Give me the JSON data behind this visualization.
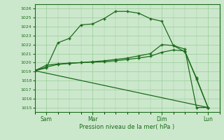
{
  "background_color": "#cce8cc",
  "grid_color": "#99cc99",
  "line_color": "#1a6b1a",
  "marker": "+",
  "xlabel": "Pression niveau de la mer( hPa )",
  "ylim_bottom": 1014.5,
  "ylim_top": 1026.5,
  "yticks": [
    1015,
    1016,
    1017,
    1018,
    1019,
    1020,
    1021,
    1022,
    1023,
    1024,
    1025,
    1026
  ],
  "xtick_labels": [
    "Sam",
    "Mar",
    "Dim",
    "Lun"
  ],
  "xtick_positions": [
    1,
    5,
    11,
    15
  ],
  "xlim": [
    0,
    16
  ],
  "series": [
    {
      "x": [
        0,
        1,
        2,
        3,
        4,
        5,
        6,
        7,
        8,
        9,
        10,
        11,
        12,
        13,
        14,
        15
      ],
      "y": [
        1019.1,
        1019.4,
        1022.2,
        1022.7,
        1024.2,
        1024.3,
        1024.9,
        1025.7,
        1025.7,
        1025.5,
        1024.9,
        1024.6,
        1021.9,
        1021.5,
        1015.0,
        1015.0
      ],
      "has_markers": true
    },
    {
      "x": [
        0,
        1,
        2,
        3,
        4,
        5,
        6,
        7,
        8,
        9,
        10,
        11,
        12,
        13,
        14,
        15
      ],
      "y": [
        1019.1,
        1019.5,
        1019.8,
        1019.9,
        1020.0,
        1020.1,
        1020.2,
        1020.35,
        1020.5,
        1020.75,
        1021.0,
        1022.0,
        1021.9,
        1021.2,
        1018.3,
        1015.0
      ],
      "has_markers": true
    },
    {
      "x": [
        0,
        1,
        2,
        3,
        4,
        5,
        6,
        7,
        8,
        9,
        10,
        11,
        12,
        13,
        14,
        15
      ],
      "y": [
        1019.1,
        1019.7,
        1019.85,
        1019.95,
        1020.0,
        1020.05,
        1020.1,
        1020.2,
        1020.35,
        1020.5,
        1020.7,
        1021.15,
        1021.4,
        1021.3,
        1018.2,
        1015.0
      ],
      "has_markers": true
    },
    {
      "x": [
        0,
        15
      ],
      "y": [
        1019.1,
        1015.0
      ],
      "has_markers": false
    }
  ]
}
